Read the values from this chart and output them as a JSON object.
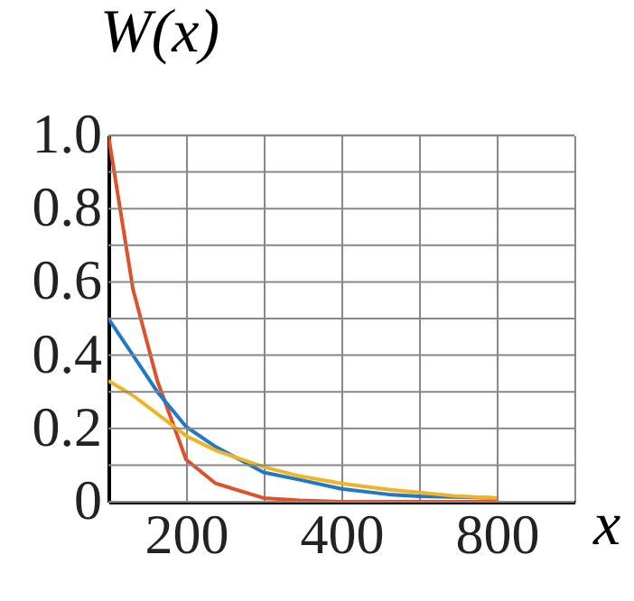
{
  "chart_data": {
    "type": "line",
    "xlabel": "x",
    "ylabel": "W(x)",
    "log": "x",
    "grid": true,
    "marker": "none",
    "line_style": "solid",
    "xlim": [
      141.4,
      1131.4
    ],
    "xticks": [
      {
        "value": 141.4,
        "label": null
      },
      200,
      {
        "value": 282.8,
        "label": null
      },
      400,
      {
        "value": 565.7,
        "label": null
      },
      800,
      {
        "value": 1131.4,
        "label": null
      }
    ],
    "ylim": [
      0,
      1
    ],
    "yticks": [
      0,
      {
        "value": 0.1,
        "label": null
      },
      0.2,
      {
        "value": 0.3,
        "label": null
      },
      0.4,
      {
        "value": 0.5,
        "label": null
      },
      0.6,
      {
        "value": 0.7,
        "label": null
      },
      0.8,
      {
        "value": 0.9,
        "label": null
      },
      {
        "value": 1,
        "label": "1.0"
      }
    ],
    "x": [
      141.4,
      157.8,
      175.9,
      200,
      228.2,
      282.8,
      332,
      400,
      493,
      565.7,
      660,
      800
    ],
    "series": [
      {
        "color": "#e0502a",
        "values": [
          1.0,
          0.58,
          0.33,
          0.115,
          0.05,
          0.01,
          0.004,
          0.0,
          0.0,
          0.0,
          0.0,
          0.0
        ]
      },
      {
        "color": "#1f78c8",
        "values": [
          0.5,
          0.4,
          0.3,
          0.205,
          0.15,
          0.08,
          0.06,
          0.035,
          0.02,
          0.015,
          0.013,
          0.01
        ]
      },
      {
        "color": "#f0b323",
        "values": [
          0.33,
          0.29,
          0.24,
          0.18,
          0.14,
          0.095,
          0.07,
          0.05,
          0.033,
          0.025,
          0.016,
          0.01
        ]
      }
    ]
  }
}
